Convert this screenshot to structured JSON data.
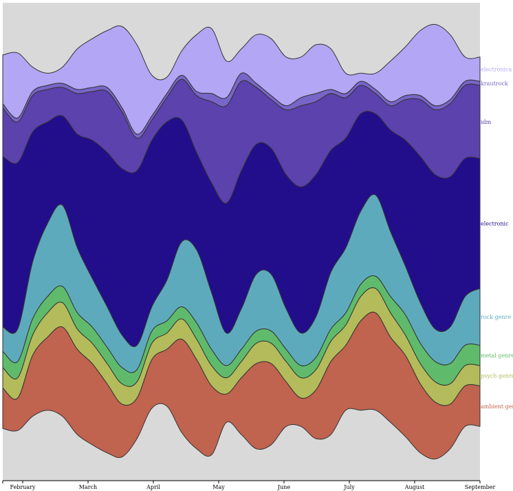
{
  "chart_data": {
    "type": "area",
    "stacked": true,
    "layout": "streamgraph",
    "background": "#d9d9d9",
    "x_axis": {
      "ticks": [
        "February",
        "March",
        "April",
        "May",
        "June",
        "July",
        "August",
        "September"
      ]
    },
    "x": [
      "Jan 25",
      "Feb 1",
      "Feb 8",
      "Feb 15",
      "Feb 22",
      "Mar 1",
      "Mar 8",
      "Mar 15",
      "Mar 22",
      "Mar 29",
      "Apr 5",
      "Apr 12",
      "Apr 19",
      "Apr 26",
      "May 3",
      "May 10",
      "May 17",
      "May 24",
      "May 31",
      "Jun 7",
      "Jun 14",
      "Jun 21",
      "Jun 28",
      "Jul 5",
      "Jul 12",
      "Jul 19",
      "Jul 26",
      "Aug 2",
      "Aug 9",
      "Aug 16",
      "Aug 23",
      "Aug 30",
      "Sep 1"
    ],
    "series": [
      {
        "name": "ambient genre",
        "color": "#c0634f",
        "values": [
          10,
          8,
          15,
          18,
          22,
          21,
          20,
          17,
          13,
          10,
          12,
          14,
          23,
          22,
          17,
          7,
          14,
          21,
          20,
          11,
          7,
          12,
          18,
          16,
          22,
          24,
          21,
          20,
          17,
          14,
          11,
          10,
          10
        ]
      },
      {
        "name": "psych genre",
        "color": "#b3bb5b",
        "values": [
          5,
          5,
          5,
          6,
          6,
          5,
          5,
          5,
          5,
          4,
          4,
          4,
          5,
          5,
          5,
          4,
          4,
          5,
          5,
          5,
          5,
          5,
          5,
          5,
          6,
          6,
          6,
          5,
          5,
          5,
          5,
          5,
          5
        ]
      },
      {
        "name": "metal genre",
        "color": "#5fbb6b",
        "values": [
          4,
          4,
          4,
          4,
          4,
          4,
          4,
          4,
          4,
          3,
          3,
          3,
          3,
          4,
          4,
          3,
          3,
          3,
          3,
          3,
          3,
          3,
          3,
          3,
          3,
          3,
          4,
          5,
          5,
          5,
          5,
          5,
          5
        ]
      },
      {
        "name": "rock genre",
        "color": "#5eaabd",
        "values": [
          6,
          8,
          14,
          18,
          20,
          16,
          12,
          10,
          8,
          6,
          6,
          10,
          16,
          18,
          14,
          8,
          10,
          14,
          14,
          10,
          8,
          10,
          14,
          16,
          18,
          20,
          16,
          12,
          10,
          8,
          9,
          12,
          14
        ]
      },
      {
        "name": "electronic",
        "color": "#220e8b",
        "values": [
          42,
          41,
          32,
          25,
          22,
          28,
          34,
          38,
          41,
          43,
          41,
          39,
          30,
          24,
          27,
          32,
          34,
          32,
          31,
          33,
          36,
          35,
          30,
          27,
          24,
          20,
          25,
          31,
          36,
          38,
          37,
          34,
          32
        ]
      },
      {
        "name": "idm",
        "color": "#5b42ad",
        "values": [
          12,
          10,
          9,
          8,
          7,
          10,
          12,
          15,
          14,
          8,
          5,
          6,
          10,
          14,
          20,
          24,
          22,
          14,
          12,
          16,
          20,
          18,
          14,
          10,
          7,
          5,
          6,
          10,
          14,
          16,
          18,
          18,
          18
        ]
      },
      {
        "name": "krautrock",
        "color": "#7865c8",
        "values": [
          1,
          1,
          1,
          1,
          1,
          1,
          1,
          1,
          1,
          1,
          1,
          1,
          1,
          1,
          2,
          2,
          2,
          1,
          1,
          1,
          2,
          2,
          1,
          1,
          1,
          1,
          1,
          1,
          1,
          1,
          1,
          1,
          1
        ]
      },
      {
        "name": "electronica",
        "color": "#b3a6f5",
        "values": [
          12,
          16,
          6,
          3,
          4,
          10,
          12,
          14,
          20,
          22,
          10,
          4,
          6,
          14,
          16,
          9,
          6,
          12,
          14,
          12,
          10,
          12,
          10,
          5,
          2,
          4,
          10,
          12,
          16,
          20,
          16,
          6,
          6
        ]
      }
    ]
  }
}
